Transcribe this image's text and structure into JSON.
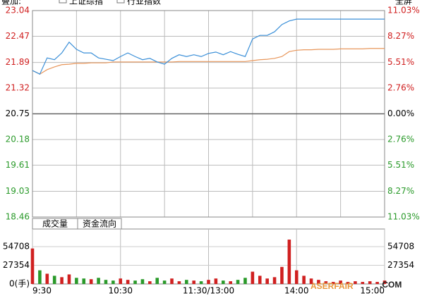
{
  "toolbar": {
    "overlay": "叠加:",
    "options": [
      "上证综指",
      "行业指数"
    ],
    "fullscreen": "全屏"
  },
  "watermark": {
    "main": "ASERFAIR",
    "suffix": ".COM"
  },
  "chart_data": [
    {
      "type": "line",
      "x": [
        0,
        5,
        10,
        15,
        20,
        25,
        30,
        35,
        40,
        45,
        50,
        55,
        60,
        65,
        70,
        75,
        80,
        85,
        90,
        95,
        100,
        105,
        110,
        115,
        120,
        125,
        130,
        135,
        140,
        145,
        150,
        155,
        160,
        165,
        170,
        175,
        180,
        185,
        190,
        195,
        200,
        205,
        210,
        215,
        220,
        225,
        230,
        235,
        240
      ],
      "xlim": [
        0,
        240
      ],
      "xticks": [
        0,
        30,
        60,
        90,
        120,
        150,
        180,
        210,
        240
      ],
      "ylim": [
        18.46,
        23.04
      ],
      "yticks": [
        23.04,
        22.47,
        21.89,
        21.32,
        20.75,
        20.18,
        19.61,
        19.03,
        18.46
      ],
      "y2lim": [
        -11.03,
        11.03
      ],
      "y2ticks": [
        {
          "value": 11.03,
          "label": "11.03%"
        },
        {
          "value": 8.27,
          "label": "8.27%"
        },
        {
          "value": 5.51,
          "label": "5.51%"
        },
        {
          "value": 2.76,
          "label": "2.76%"
        },
        {
          "value": 0,
          "label": "0.00%"
        },
        {
          "value": -2.76,
          "label": "2.76%"
        },
        {
          "value": -5.51,
          "label": "5.51%"
        },
        {
          "value": -8.27,
          "label": "8.27%"
        },
        {
          "value": -11.03,
          "label": "11.03%"
        }
      ],
      "grid": true,
      "series": [
        {
          "color": "#3a8fd8",
          "values": [
            21.71,
            21.63,
            21.99,
            21.95,
            22.1,
            22.34,
            22.18,
            22.1,
            22.1,
            21.99,
            21.96,
            21.93,
            22.02,
            22.1,
            22.02,
            21.95,
            21.98,
            21.9,
            21.85,
            21.98,
            22.06,
            22.02,
            22.06,
            22.02,
            22.09,
            22.12,
            22.06,
            22.13,
            22.07,
            22.02,
            22.41,
            22.49,
            22.49,
            22.57,
            22.73,
            22.81,
            22.85,
            22.85,
            22.85,
            22.85,
            22.85,
            22.85,
            22.85,
            22.85,
            22.85,
            22.85,
            22.85,
            22.85,
            22.85
          ]
        },
        {
          "color": "#e8965a",
          "values": [
            21.71,
            21.63,
            21.73,
            21.79,
            21.84,
            21.85,
            21.87,
            21.87,
            21.88,
            21.88,
            21.88,
            21.9,
            21.9,
            21.9,
            21.9,
            21.9,
            21.9,
            21.9,
            21.9,
            21.9,
            21.91,
            21.91,
            21.91,
            21.91,
            21.91,
            21.91,
            21.91,
            21.91,
            21.91,
            21.91,
            21.93,
            21.95,
            21.96,
            21.98,
            22.02,
            22.13,
            22.16,
            22.17,
            22.17,
            22.18,
            22.18,
            22.18,
            22.19,
            22.19,
            22.19,
            22.19,
            22.2,
            22.2,
            22.2
          ]
        }
      ]
    },
    {
      "type": "bar",
      "tabs": [
        "成交量",
        "资金流向"
      ],
      "x": [
        0,
        5,
        10,
        15,
        20,
        25,
        30,
        35,
        40,
        45,
        50,
        55,
        60,
        65,
        70,
        75,
        80,
        85,
        90,
        95,
        100,
        105,
        110,
        115,
        120,
        125,
        130,
        135,
        140,
        145,
        150,
        155,
        160,
        165,
        170,
        175,
        180,
        185,
        190,
        195,
        200,
        205,
        210,
        215,
        220,
        225,
        230,
        235,
        240
      ],
      "xlim": [
        0,
        240
      ],
      "xticks": [
        {
          "value": 0,
          "label": "9:30"
        },
        {
          "value": 60,
          "label": "10:30"
        },
        {
          "value": 120,
          "label": "11:30/13:00"
        },
        {
          "value": 180,
          "label": "14:00"
        },
        {
          "value": 240,
          "label": "15:00"
        }
      ],
      "ylim": [
        0,
        80500
      ],
      "yticks": [
        {
          "value": 0,
          "label": "0(手)"
        },
        27354,
        54708
      ],
      "up_color": "#d02020",
      "down_color": "#2a9a2a",
      "values": [
        52000,
        20000,
        15000,
        12000,
        10000,
        14000,
        9000,
        8000,
        7000,
        9000,
        6000,
        5000,
        8000,
        6000,
        5000,
        7000,
        4000,
        9000,
        5000,
        8000,
        4000,
        6000,
        5000,
        4000,
        6000,
        8000,
        5000,
        4000,
        6000,
        9000,
        18000,
        12000,
        8000,
        10000,
        25000,
        65000,
        20000,
        12000,
        8000,
        6000,
        4000,
        3000,
        5000,
        3000,
        4000,
        3000,
        4000,
        3000,
        5000
      ]
    }
  ]
}
